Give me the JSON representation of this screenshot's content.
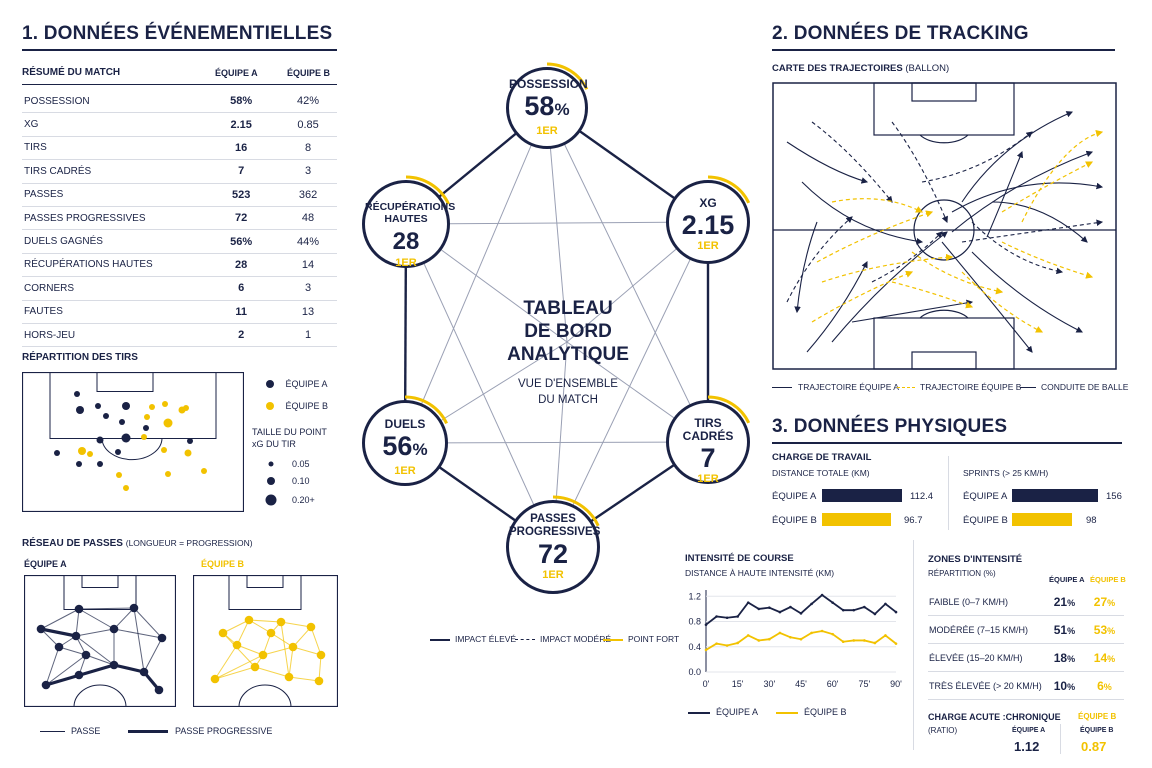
{
  "sections": {
    "events_title": "1. DONNÉES ÉVÉNEMENTIELLES",
    "tracking_title": "2. DONNÉES DE TRACKING",
    "physical_title": "3. DONNÉES PHYSIQUES"
  },
  "summary": {
    "title": "RÉSUMÉ DU MATCH",
    "col_a": "ÉQUIPE A",
    "col_b": "ÉQUIPE B",
    "rows": [
      {
        "label": "POSSESSION",
        "a": "58%",
        "b": "42%"
      },
      {
        "label": "xG",
        "a": "2.15",
        "b": "0.85"
      },
      {
        "label": "TIRS",
        "a": "16",
        "b": "8"
      },
      {
        "label": "TIRS CADRÉS",
        "a": "7",
        "b": "3"
      },
      {
        "label": "PASSES",
        "a": "523",
        "b": "362"
      },
      {
        "label": "PASSES PROGRESSIVES",
        "a": "72",
        "b": "48"
      },
      {
        "label": "DUELS GAGNÉS",
        "a": "56%",
        "b": "44%"
      },
      {
        "label": "RÉCUPÉRATIONS HAUTES",
        "a": "28",
        "b": "14"
      },
      {
        "label": "CORNERS",
        "a": "6",
        "b": "3"
      },
      {
        "label": "FAUTES",
        "a": "11",
        "b": "13"
      },
      {
        "label": "HORS-JEU",
        "a": "2",
        "b": "1"
      }
    ]
  },
  "shots": {
    "title": "RÉPARTITION DES TIRS",
    "legend_a": "ÉQUIPE A",
    "legend_b": "ÉQUIPE B",
    "size_title_1": "TAILLE DU POINT",
    "size_title_2": "xG DU TIR",
    "sizes": [
      "0.05",
      "0.10",
      "0.20+"
    ],
    "colors": {
      "a": "#1a2245",
      "b": "#f2c200"
    }
  },
  "pass_network": {
    "title": "RÉSEAU DE PASSES",
    "subtitle": "(LONGUEUR = PROGRESSION)",
    "team_a": "ÉQUIPE A",
    "team_b": "ÉQUIPE B",
    "legend_pass": "PASSE",
    "legend_prog": "PASSE PROGRESSIVE"
  },
  "dashboard": {
    "title_lines": [
      "TABLEAU",
      "DE BORD",
      "ANALYTIQUE"
    ],
    "subtitle_lines": [
      "VUE D'ENSEMBLE",
      "DU MATCH"
    ],
    "nodes": [
      {
        "label": "POSSESSION",
        "value": "58",
        "unit": "%",
        "rank": "1ER",
        "progress": 0.58
      },
      {
        "label": "xG",
        "value": "2.15",
        "unit": "",
        "rank": "1ER",
        "progress": 0.72
      },
      {
        "label": "TIRS CADRÉS",
        "value": "7",
        "unit": "",
        "rank": "1ER",
        "progress": 0.7
      },
      {
        "label": "PASSES PROGRESSIVES",
        "value": "72",
        "unit": "",
        "rank": "1ER",
        "progress": 0.6
      },
      {
        "label": "DUELS",
        "value": "56",
        "unit": "%",
        "rank": "1ER",
        "progress": 0.56
      },
      {
        "label": "RÉCUPÉRATIONS HAUTES",
        "value": "28",
        "unit": "",
        "rank": "1ER",
        "progress": 0.67
      }
    ],
    "legend": [
      "IMPACT ÉLEVÉ",
      "IMPACT MODÉRÉ",
      "POINT FORT"
    ]
  },
  "tracking": {
    "title": "CARTE DES TRAJECTOIRES",
    "subtitle": "(BALLON)",
    "legend": [
      "TRAJECTOIRE ÉQUIPE A",
      "TRAJECTOIRE ÉQUIPE B",
      "CONDUITE DE BALLE"
    ]
  },
  "workload": {
    "title": "CHARGE DE TRAVAIL",
    "distance_label": "DISTANCE TOTALE (KM)",
    "sprints_label": "SPRINTS (> 25 KM/H)",
    "team_a": "ÉQUIPE A",
    "team_b": "ÉQUIPE B",
    "distance": {
      "a": "112.4",
      "b": "96.7"
    },
    "sprints": {
      "a": "156",
      "b": "98"
    }
  },
  "chart_data": {
    "type": "line",
    "title": "INTENSITÉ DE COURSE",
    "subtitle": "DISTANCE À HAUTE INTENSITÉ (KM)",
    "xlabel": "",
    "ylabel": "",
    "x": [
      0,
      5,
      10,
      15,
      20,
      25,
      30,
      35,
      40,
      45,
      50,
      55,
      60,
      65,
      70,
      75,
      80,
      85,
      90
    ],
    "x_ticks": [
      "0'",
      "15'",
      "30'",
      "45'",
      "60'",
      "75'",
      "90'"
    ],
    "y_ticks": [
      "0.0",
      "0.4",
      "0.8",
      "1.2"
    ],
    "ylim": [
      0,
      1.3
    ],
    "series": [
      {
        "name": "ÉQUIPE A",
        "color": "#1a2245",
        "values": [
          0.75,
          0.88,
          0.86,
          0.88,
          1.1,
          1.0,
          1.02,
          0.95,
          1.03,
          0.93,
          1.08,
          1.22,
          1.1,
          0.98,
          0.98,
          1.03,
          0.92,
          1.08,
          0.95
        ]
      },
      {
        "name": "ÉQUIPE B",
        "color": "#f2c200",
        "values": [
          0.35,
          0.45,
          0.42,
          0.46,
          0.58,
          0.5,
          0.52,
          0.62,
          0.55,
          0.52,
          0.62,
          0.65,
          0.6,
          0.48,
          0.5,
          0.5,
          0.46,
          0.58,
          0.45
        ]
      }
    ]
  },
  "zones": {
    "title": "ZONES D'INTENSITÉ",
    "subtitle": "RÉPARTITION (%)",
    "col_a": "ÉQUIPE A",
    "col_b": "ÉQUIPE B",
    "rows": [
      {
        "label": "FAIBLE (0–7 KM/H)",
        "a": "21",
        "b": "27"
      },
      {
        "label": "MODÉRÉE (7–15 KM/H)",
        "a": "51",
        "b": "53"
      },
      {
        "label": "ÉLEVÉE (15–20 KM/H)",
        "a": "18",
        "b": "14"
      },
      {
        "label": "TRÈS ÉLEVÉE (> 20 KM/H)",
        "a": "10",
        "b": "6"
      }
    ],
    "unit": "%"
  },
  "acute": {
    "title": "CHARGE ACUTE :CHRONIQUE",
    "subtitle": "(RATIO)",
    "team_a": "ÉQUIPE A",
    "team_b": "ÉQUIPE B",
    "a": "1.12",
    "b": "0.87"
  }
}
